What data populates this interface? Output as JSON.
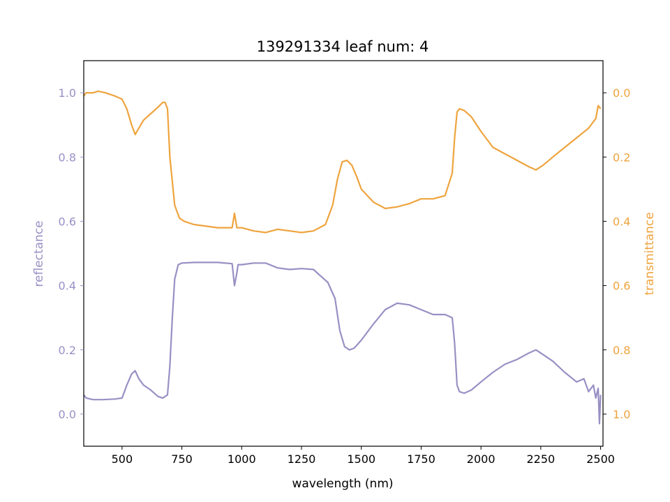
{
  "chart_data": {
    "type": "line",
    "title": "139291334 leaf num: 4",
    "xlabel": "wavelength (nm)",
    "xlim": [
      340,
      2510
    ],
    "xticks": [
      500,
      750,
      1000,
      1250,
      1500,
      1750,
      2000,
      2250,
      2500
    ],
    "grid": false,
    "left_axis": {
      "label": "reflectance",
      "color": "#9890c4",
      "ylim": [
        -0.1,
        1.1
      ],
      "ticks": [
        0.0,
        0.2,
        0.4,
        0.6,
        0.8,
        1.0
      ],
      "tick_labels": [
        "0.0",
        "0.2",
        "0.4",
        "0.6",
        "0.8",
        "1.0"
      ]
    },
    "right_axis": {
      "label": "transmittance",
      "color": "#eea43e",
      "inverted": true,
      "ylim": [
        1.1,
        -0.1
      ],
      "ticks": [
        0.0,
        0.2,
        0.4,
        0.6,
        0.8,
        1.0
      ],
      "tick_labels": [
        "0.0",
        "0.2",
        "0.4",
        "0.6",
        "0.8",
        "1.0"
      ]
    },
    "series": [
      {
        "axis": "left",
        "color": "#9890c4",
        "x": [
          340,
          350,
          380,
          420,
          470,
          500,
          520,
          540,
          555,
          570,
          590,
          620,
          650,
          670,
          690,
          700,
          710,
          720,
          735,
          750,
          800,
          900,
          960,
          970,
          980,
          985,
          1000,
          1050,
          1100,
          1150,
          1200,
          1250,
          1300,
          1330,
          1360,
          1390,
          1410,
          1430,
          1450,
          1470,
          1500,
          1550,
          1600,
          1650,
          1700,
          1750,
          1800,
          1850,
          1880,
          1890,
          1900,
          1910,
          1930,
          1960,
          2000,
          2050,
          2100,
          2150,
          2200,
          2230,
          2260,
          2300,
          2350,
          2400,
          2430,
          2450,
          2470,
          2480,
          2490,
          2495,
          2500
        ],
        "y": [
          0.06,
          0.05,
          0.045,
          0.045,
          0.047,
          0.05,
          0.09,
          0.125,
          0.135,
          0.11,
          0.09,
          0.075,
          0.055,
          0.05,
          0.06,
          0.15,
          0.3,
          0.42,
          0.465,
          0.47,
          0.472,
          0.472,
          0.468,
          0.4,
          0.44,
          0.465,
          0.465,
          0.47,
          0.47,
          0.455,
          0.45,
          0.453,
          0.45,
          0.43,
          0.41,
          0.36,
          0.26,
          0.21,
          0.2,
          0.205,
          0.23,
          0.28,
          0.325,
          0.345,
          0.34,
          0.325,
          0.31,
          0.31,
          0.3,
          0.22,
          0.09,
          0.07,
          0.065,
          0.075,
          0.1,
          0.13,
          0.155,
          0.17,
          0.19,
          0.2,
          0.185,
          0.165,
          0.13,
          0.1,
          0.11,
          0.07,
          0.09,
          0.05,
          0.08,
          -0.03,
          0.06
        ]
      },
      {
        "axis": "right",
        "color": "#eea43e",
        "x": [
          340,
          350,
          380,
          400,
          430,
          470,
          500,
          520,
          540,
          555,
          570,
          590,
          620,
          650,
          670,
          680,
          690,
          700,
          720,
          740,
          760,
          800,
          900,
          960,
          970,
          980,
          1000,
          1050,
          1100,
          1150,
          1200,
          1250,
          1300,
          1350,
          1380,
          1400,
          1420,
          1440,
          1460,
          1480,
          1500,
          1550,
          1600,
          1650,
          1700,
          1750,
          1800,
          1850,
          1880,
          1890,
          1900,
          1910,
          1930,
          1960,
          2000,
          2050,
          2100,
          2150,
          2200,
          2230,
          2260,
          2300,
          2350,
          2400,
          2450,
          2480,
          2490,
          2500
        ],
        "y": [
          0.01,
          0.0,
          0.0,
          -0.005,
          0.0,
          0.01,
          0.02,
          0.05,
          0.1,
          0.13,
          0.11,
          0.085,
          0.065,
          0.045,
          0.03,
          0.03,
          0.05,
          0.2,
          0.35,
          0.39,
          0.4,
          0.41,
          0.42,
          0.42,
          0.375,
          0.42,
          0.42,
          0.43,
          0.435,
          0.425,
          0.43,
          0.435,
          0.43,
          0.41,
          0.35,
          0.27,
          0.215,
          0.21,
          0.225,
          0.26,
          0.3,
          0.34,
          0.36,
          0.355,
          0.345,
          0.33,
          0.33,
          0.32,
          0.25,
          0.14,
          0.06,
          0.05,
          0.055,
          0.075,
          0.12,
          0.17,
          0.19,
          0.21,
          0.23,
          0.24,
          0.225,
          0.2,
          0.17,
          0.14,
          0.11,
          0.08,
          0.04,
          0.05
        ]
      }
    ]
  }
}
